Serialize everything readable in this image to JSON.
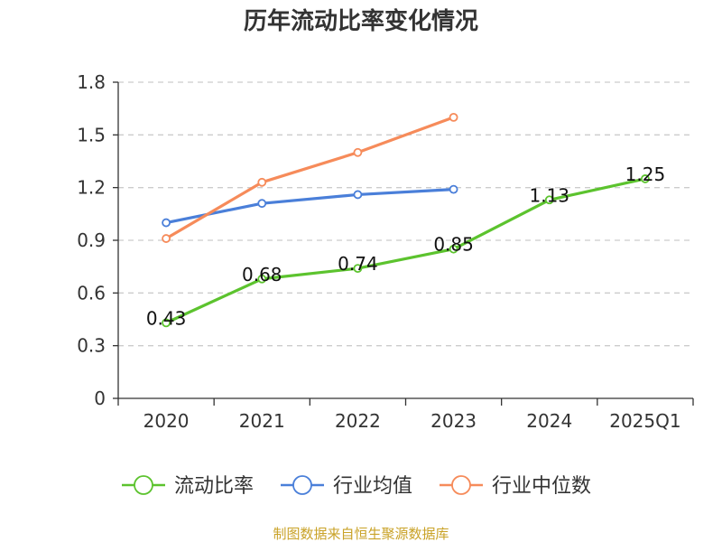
{
  "chart_data": {
    "type": "line",
    "title": "历年流动比率变化情况",
    "categories": [
      "2020",
      "2021",
      "2022",
      "2023",
      "2024",
      "2025Q1"
    ],
    "ylim": [
      0,
      1.8
    ],
    "yticks": [
      "0",
      "0.3",
      "0.6",
      "0.9",
      "1.2",
      "1.5",
      "1.8"
    ],
    "grid": true,
    "legend_position": "bottom",
    "series": [
      {
        "name": "流动比率",
        "color": "#5cc32e",
        "values": [
          0.43,
          0.68,
          0.74,
          0.85,
          1.13,
          1.25
        ],
        "data_labels": [
          "0.43",
          "0.68",
          "0.74",
          "0.85",
          "1.13",
          "1.25"
        ]
      },
      {
        "name": "行业均值",
        "color": "#4a7fd9",
        "values": [
          1.0,
          1.11,
          1.16,
          1.19,
          null,
          null
        ]
      },
      {
        "name": "行业中位数",
        "color": "#f68b5a",
        "values": [
          0.91,
          1.23,
          1.4,
          1.6,
          null,
          null
        ]
      }
    ]
  },
  "source_text": "制图数据来自恒生聚源数据库"
}
